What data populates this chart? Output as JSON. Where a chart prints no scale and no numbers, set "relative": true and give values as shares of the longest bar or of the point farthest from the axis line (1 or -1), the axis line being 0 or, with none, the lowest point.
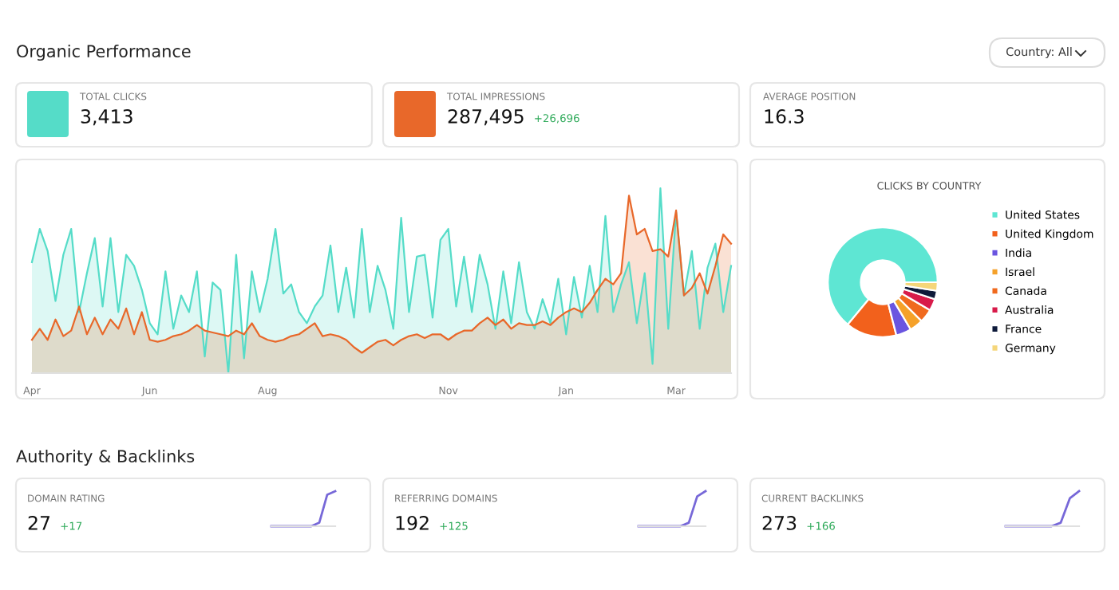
{
  "chart_data": [
    {
      "type": "other",
      "title": "Organic Performance",
      "annotations": [
        "Country: All",
        "TOTAL CLICKS",
        "3,413",
        "TOTAL IMPRESSIONS",
        "287,495",
        "+26,696",
        "AVERAGE POSITION",
        "16.3"
      ]
    },
    {
      "type": "area",
      "relative": true,
      "categories": [
        "Apr",
        null,
        null,
        null,
        null,
        null,
        null,
        null,
        null,
        null,
        null,
        null,
        null,
        null,
        null,
        "Jun",
        null,
        null,
        null,
        null,
        null,
        null,
        null,
        null,
        null,
        null,
        null,
        null,
        null,
        null,
        "Aug",
        null,
        null,
        null,
        null,
        null,
        null,
        null,
        null,
        null,
        null,
        null,
        null,
        null,
        null,
        null,
        null,
        null,
        null,
        null,
        null,
        null,
        null,
        "Nov",
        null,
        null,
        null,
        null,
        null,
        null,
        null,
        null,
        null,
        null,
        null,
        null,
        null,
        null,
        "Jan",
        null,
        null,
        null,
        null,
        null,
        null,
        null,
        null,
        null,
        null,
        null,
        null,
        null,
        "Mar",
        null,
        null,
        null,
        null,
        null,
        null,
        null
      ],
      "series": [
        {
          "color": "#55dcc8",
          "values": [
            0.6,
            0.78,
            0.66,
            0.39,
            0.64,
            0.78,
            0.33,
            0.54,
            0.73,
            0.36,
            0.73,
            0.33,
            0.64,
            0.58,
            0.45,
            0.27,
            0.21,
            0.55,
            0.24,
            0.42,
            0.33,
            0.55,
            0.09,
            0.49,
            0.45,
            0,
            0.64,
            0.08,
            0.55,
            0.33,
            0.51,
            0.78,
            0.43,
            0.48,
            0.33,
            0.27,
            0.36,
            0.42,
            0.69,
            0.33,
            0.57,
            0.3,
            0.78,
            0.33,
            0.58,
            0.45,
            0.24,
            0.84,
            0.33,
            0.63,
            0.64,
            0.3,
            0.72,
            0.78,
            0.36,
            0.63,
            0.33,
            0.64,
            0.48,
            0.24,
            0.55,
            0.27,
            0.6,
            0.33,
            0.24,
            0.4,
            0.27,
            0.51,
            0.21,
            0.52,
            0.3,
            0.58,
            0.33,
            0.85,
            0.33,
            0.48,
            0.6,
            0.27,
            0.54,
            0.05,
            1.0,
            0.24,
            0.87,
            0.42,
            0.66,
            0.24,
            0.57,
            0.7,
            0.33,
            0.58
          ]
        },
        {
          "color": "#e8682a",
          "values": [
            0.18,
            0.24,
            0.18,
            0.29,
            0.2,
            0.23,
            0.36,
            0.21,
            0.3,
            0.21,
            0.29,
            0.24,
            0.35,
            0.21,
            0.33,
            0.18,
            0.17,
            0.18,
            0.2,
            0.21,
            0.23,
            0.26,
            0.23,
            0.22,
            0.21,
            0.2,
            0.23,
            0.21,
            0.27,
            0.2,
            0.18,
            0.17,
            0.18,
            0.2,
            0.21,
            0.24,
            0.27,
            0.2,
            0.21,
            0.2,
            0.18,
            0.14,
            0.11,
            0.14,
            0.17,
            0.18,
            0.15,
            0.18,
            0.2,
            0.21,
            0.19,
            0.21,
            0.21,
            0.18,
            0.21,
            0.23,
            0.23,
            0.27,
            0.3,
            0.26,
            0.29,
            0.24,
            0.27,
            0.26,
            0.26,
            0.28,
            0.26,
            0.3,
            0.33,
            0.35,
            0.33,
            0.38,
            0.45,
            0.51,
            0.48,
            0.54,
            0.96,
            0.75,
            0.78,
            0.66,
            0.67,
            0.63,
            0.88,
            0.42,
            0.46,
            0.54,
            0.43,
            0.58,
            0.75,
            0.7
          ]
        }
      ]
    },
    {
      "type": "donut",
      "title": "CLICKS BY COUNTRY",
      "legend": "right",
      "categories": [
        "United States",
        "United Kingdom",
        "India",
        "Israel",
        "Canada",
        "Australia",
        "France",
        "Germany"
      ],
      "values": [
        64,
        15,
        4.5,
        4,
        4,
        3.5,
        2.5,
        2.5
      ],
      "colors": [
        "#5ee6d3",
        "#f2611c",
        "#6a55e0",
        "#f5a12a",
        "#f06a1e",
        "#d81b4a",
        "#0e1a3a",
        "#f5d67a"
      ]
    },
    {
      "type": "other",
      "title": "Authority & Backlinks",
      "annotations": [
        "DOMAIN RATING",
        "27",
        "+17",
        "REFERRING DOMAINS",
        "192",
        "+125",
        "CURRENT BACKLINKS",
        "273",
        "+166"
      ]
    },
    {
      "type": "line",
      "relative": true,
      "color": "#7768d8",
      "categories": [
        null,
        null,
        null,
        null,
        null,
        null,
        null,
        null,
        null
      ],
      "values": [
        0,
        0,
        0,
        0,
        0,
        0,
        0.1,
        0.9,
        1
      ]
    },
    {
      "type": "line",
      "relative": true,
      "color": "#7768d8",
      "categories": [
        null,
        null,
        null,
        null,
        null,
        null,
        null,
        null,
        null
      ],
      "values": [
        0,
        0,
        0,
        0,
        0,
        0,
        0.1,
        0.85,
        1
      ]
    },
    {
      "type": "line",
      "relative": true,
      "color": "#7768d8",
      "categories": [
        null,
        null,
        null,
        null,
        null,
        null,
        null,
        null,
        null
      ],
      "values": [
        0,
        0,
        0,
        0,
        0,
        0,
        0.1,
        0.8,
        1
      ]
    }
  ]
}
